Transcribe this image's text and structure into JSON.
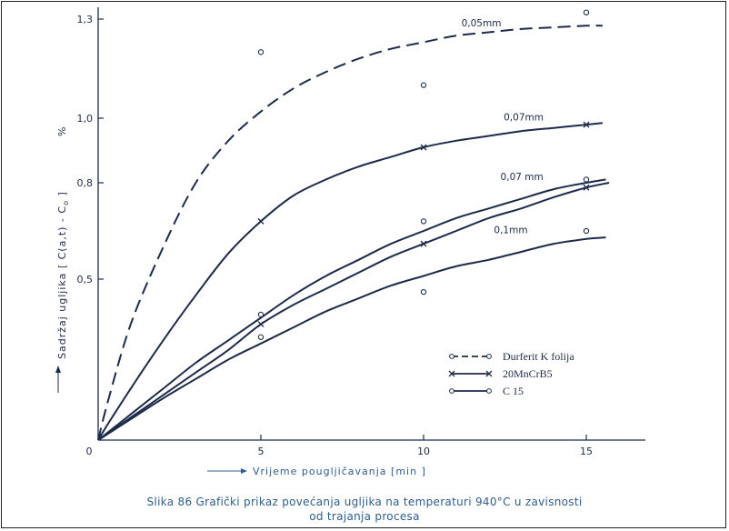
{
  "chart_data": {
    "type": "line",
    "xlabel": "Vrijeme pougljičavanja  [min ]",
    "ylabel": "Sadržaj ugljika  [ C(a,t) - C",
    "ylabel_sub": "o",
    "ylabel_tail": " ]",
    "ylabel_unit": "%",
    "xlim": [
      0,
      17
    ],
    "ylim": [
      0,
      1.3
    ],
    "x_ticks": [
      0,
      5,
      10,
      15
    ],
    "x_tick_labels": [
      "0",
      "5",
      "10",
      "15"
    ],
    "y_ticks": [
      0.5,
      0.8,
      1.0,
      1.3
    ],
    "y_tick_labels": [
      "0,5",
      "0,8",
      "1,0",
      "1,3"
    ],
    "grid": false,
    "legend_position": "bottom-right",
    "curve_labels": [
      {
        "text": "0,05mm",
        "x": 12.0,
        "y": 1.27
      },
      {
        "text": "0,07mm",
        "x": 13.3,
        "y": 0.985
      },
      {
        "text": "0,07 mm",
        "x": 13.2,
        "y": 0.8
      },
      {
        "text": "0,1mm",
        "x": 13.0,
        "y": 0.635
      }
    ],
    "series": [
      {
        "name": "Durferit K folija",
        "style": "dashed",
        "marker": "o",
        "curves": [
          {
            "label": "0,05mm",
            "x": [
              0,
              0.3,
              1,
              2,
              3,
              4,
              5,
              6,
              7,
              8,
              9,
              10,
              11,
              12,
              13,
              14,
              15,
              15.5
            ],
            "y": [
              0,
              0.12,
              0.36,
              0.6,
              0.8,
              0.93,
              1.02,
              1.09,
              1.14,
              1.18,
              1.21,
              1.23,
              1.25,
              1.26,
              1.27,
              1.275,
              1.28,
              1.28
            ]
          }
        ],
        "points": [
          {
            "x": 5,
            "y": 1.2
          },
          {
            "x": 10,
            "y": 1.1
          },
          {
            "x": 15,
            "y": 1.32
          }
        ]
      },
      {
        "name": "20MnCrB5",
        "style": "solid",
        "marker": "x",
        "curves": [
          {
            "label": "0,07mm",
            "x": [
              0,
              0.3,
              1,
              2,
              3,
              4,
              5,
              6,
              7,
              8,
              9,
              10,
              11,
              12,
              13,
              14,
              15,
              15.5
            ],
            "y": [
              0,
              0.05,
              0.16,
              0.31,
              0.45,
              0.58,
              0.68,
              0.76,
              0.81,
              0.85,
              0.88,
              0.91,
              0.93,
              0.945,
              0.96,
              0.97,
              0.98,
              0.985
            ]
          },
          {
            "label": "",
            "x": [
              0,
              1,
              2,
              3,
              4,
              5,
              6,
              7,
              8,
              9,
              10,
              11,
              12,
              13,
              14,
              15,
              15.7
            ],
            "y": [
              0,
              0.07,
              0.14,
              0.21,
              0.28,
              0.36,
              0.42,
              0.47,
              0.52,
              0.57,
              0.61,
              0.65,
              0.69,
              0.72,
              0.755,
              0.785,
              0.8
            ]
          }
        ],
        "points": [
          {
            "x": 5,
            "y": 0.68
          },
          {
            "x": 10,
            "y": 0.91
          },
          {
            "x": 15,
            "y": 0.98
          },
          {
            "x": 5,
            "y": 0.36
          },
          {
            "x": 10,
            "y": 0.61
          },
          {
            "x": 15,
            "y": 0.785
          }
        ]
      },
      {
        "name": "C 15",
        "style": "solid",
        "marker": "o",
        "curves": [
          {
            "label": "0,07 mm",
            "x": [
              0,
              1,
              2,
              3,
              4,
              5,
              6,
              7,
              8,
              9,
              10,
              11,
              12,
              13,
              14,
              15,
              15.6
            ],
            "y": [
              0,
              0.08,
              0.16,
              0.24,
              0.31,
              0.38,
              0.45,
              0.51,
              0.56,
              0.61,
              0.65,
              0.69,
              0.72,
              0.75,
              0.78,
              0.8,
              0.81
            ]
          },
          {
            "label": "0,1mm",
            "x": [
              0,
              1,
              2,
              3,
              4,
              5,
              6,
              7,
              8,
              9,
              10,
              11,
              12,
              13,
              14,
              15,
              15.6
            ],
            "y": [
              0,
              0.065,
              0.13,
              0.19,
              0.25,
              0.3,
              0.35,
              0.4,
              0.44,
              0.48,
              0.51,
              0.54,
              0.56,
              0.585,
              0.61,
              0.625,
              0.63
            ]
          }
        ],
        "points": [
          {
            "x": 5,
            "y": 0.39
          },
          {
            "x": 10,
            "y": 0.68
          },
          {
            "x": 15,
            "y": 0.81
          },
          {
            "x": 5,
            "y": 0.32
          },
          {
            "x": 10,
            "y": 0.46
          },
          {
            "x": 15,
            "y": 0.65
          }
        ]
      }
    ],
    "legend": [
      {
        "label": "Durferit K folija",
        "style": "dashed",
        "marker": "o"
      },
      {
        "label": "20MnCrB5",
        "style": "solid",
        "marker": "x"
      },
      {
        "label": "C 15",
        "style": "solid",
        "marker": "o"
      }
    ],
    "caption_line1": "Slika 86 Grafički  prikaz povećanja ugljika na temperaturi  940°C  u zavisnosti",
    "caption_line2": "od trajanja procesa"
  },
  "colors": {
    "ink": "#1e2a4a",
    "caption": "#2f5d8f"
  }
}
